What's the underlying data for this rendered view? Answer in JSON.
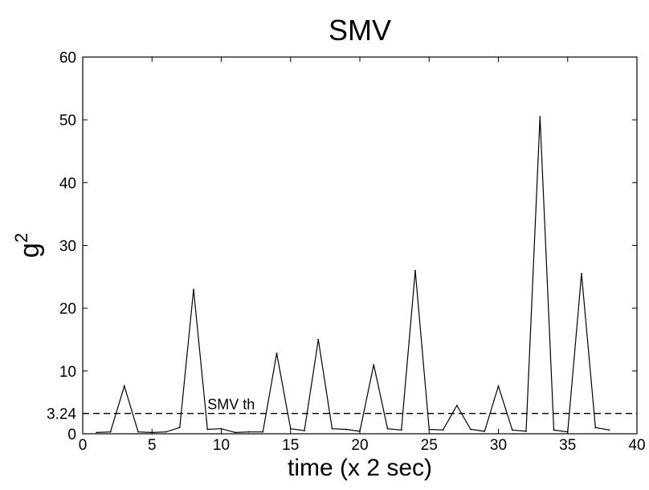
{
  "chart_data": {
    "type": "line",
    "title": "SMV",
    "xlabel": "time (x 2 sec)",
    "ylabel_base": "g",
    "ylabel_exponent": "2",
    "xlim": [
      0,
      40
    ],
    "ylim": [
      0,
      60
    ],
    "xticks": [
      0,
      5,
      10,
      15,
      20,
      25,
      30,
      35,
      40
    ],
    "yticks": [
      0,
      10,
      20,
      30,
      40,
      50,
      60
    ],
    "extra_ytick": 3.24,
    "extra_ytick_label": "3.24",
    "grid": false,
    "series": [
      {
        "x": [
          1,
          2,
          3,
          4,
          5,
          6,
          7,
          8,
          9,
          10,
          11,
          12,
          13,
          14,
          15,
          16,
          17,
          18,
          19,
          20,
          21,
          22,
          23,
          24,
          25,
          26,
          27,
          28,
          29,
          30,
          31,
          32,
          33,
          34,
          35,
          36,
          37,
          38
        ],
        "y": [
          0.2,
          0.3,
          7.6,
          0.3,
          0.2,
          0.3,
          1.0,
          23.0,
          0.7,
          0.8,
          0.2,
          0.3,
          0.3,
          12.8,
          0.8,
          0.5,
          15.0,
          0.8,
          0.7,
          0.4,
          11.0,
          0.8,
          0.6,
          26.0,
          0.7,
          0.6,
          4.5,
          0.7,
          0.4,
          7.6,
          0.6,
          0.4,
          50.5,
          0.6,
          0.3,
          25.5,
          1.0,
          0.6
        ],
        "color": "#000000"
      }
    ],
    "threshold": {
      "value": 3.24,
      "label": "SMV th",
      "style": "dashed"
    }
  }
}
